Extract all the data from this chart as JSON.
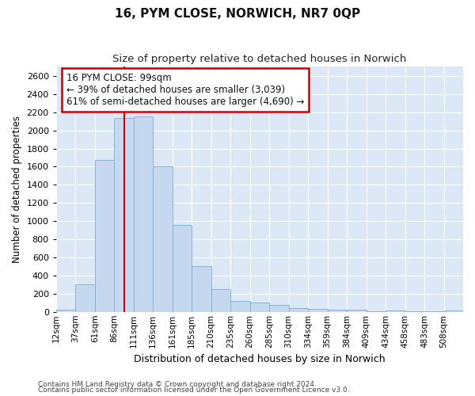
{
  "title": "16, PYM CLOSE, NORWICH, NR7 0QP",
  "subtitle": "Size of property relative to detached houses in Norwich",
  "xlabel": "Distribution of detached houses by size in Norwich",
  "ylabel": "Number of detached properties",
  "bar_color": "#c5d8ef",
  "bar_edge_color": "#7aafd4",
  "background_color": "#dce8f5",
  "fig_background": "#ffffff",
  "grid_color": "#ffffff",
  "annotation_text": "16 PYM CLOSE: 99sqm\n← 39% of detached houses are smaller (3,039)\n61% of semi-detached houses are larger (4,690) →",
  "vline_x": 99,
  "vline_color": "#cc0000",
  "annotation_box_facecolor": "#ffffff",
  "annotation_box_edgecolor": "#cc0000",
  "footer_line1": "Contains HM Land Registry data © Crown copyright and database right 2024.",
  "footer_line2": "Contains public sector information licensed under the Open Government Licence v3.0.",
  "categories": [
    "12sqm",
    "37sqm",
    "61sqm",
    "86sqm",
    "111sqm",
    "136sqm",
    "161sqm",
    "185sqm",
    "210sqm",
    "235sqm",
    "260sqm",
    "285sqm",
    "310sqm",
    "334sqm",
    "359sqm",
    "384sqm",
    "409sqm",
    "434sqm",
    "458sqm",
    "483sqm",
    "508sqm"
  ],
  "bin_left": [
    0,
    1,
    2,
    3,
    4,
    5,
    6,
    7,
    8,
    9,
    10,
    11,
    12,
    13,
    14,
    15,
    16,
    17,
    18,
    19,
    20
  ],
  "values": [
    20,
    300,
    1670,
    2140,
    2150,
    1600,
    960,
    500,
    250,
    120,
    100,
    80,
    45,
    30,
    20,
    20,
    5,
    15,
    5,
    5,
    15
  ],
  "ylim": [
    0,
    2700
  ],
  "yticks": [
    0,
    200,
    400,
    600,
    800,
    1000,
    1200,
    1400,
    1600,
    1800,
    2000,
    2200,
    2400,
    2600
  ],
  "vline_bin": 3.64
}
